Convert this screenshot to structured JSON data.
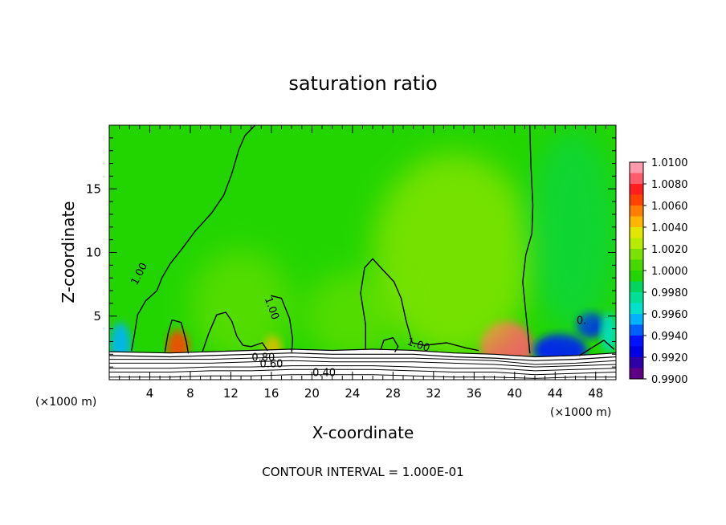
{
  "chart_data": {
    "type": "heatmap",
    "title": "saturation ratio",
    "xlabel": "X-coordinate",
    "ylabel": "Z-coordinate",
    "x_unit_label": "(×1000 m)",
    "x_unit_label_right": "(×1000 m)",
    "footer": "CONTOUR INTERVAL = 1.000E-01",
    "xlim": [
      0,
      50
    ],
    "ylim": [
      0,
      20
    ],
    "x_ticks": [
      4,
      8,
      12,
      16,
      20,
      24,
      28,
      32,
      36,
      40,
      44,
      48
    ],
    "y_ticks": [
      5,
      10,
      15
    ],
    "grid": false,
    "colorbar_labels": [
      "1.0100",
      "1.0080",
      "1.0060",
      "1.0040",
      "1.0020",
      "1.0000",
      "0.9980",
      "0.9960",
      "0.9940",
      "0.9920",
      "0.9900"
    ],
    "colorbar_levels": [
      {
        "min": 1.009,
        "max": 1.01,
        "color": "#ff9aaa"
      },
      {
        "min": 1.008,
        "max": 1.009,
        "color": "#ff5d6c"
      },
      {
        "min": 1.007,
        "max": 1.008,
        "color": "#ff1f1f"
      },
      {
        "min": 1.006,
        "max": 1.007,
        "color": "#ff4300"
      },
      {
        "min": 1.005,
        "max": 1.006,
        "color": "#ff7d00"
      },
      {
        "min": 1.004,
        "max": 1.005,
        "color": "#ffb400"
      },
      {
        "min": 1.003,
        "max": 1.004,
        "color": "#e3e600"
      },
      {
        "min": 1.002,
        "max": 1.003,
        "color": "#b7ec00"
      },
      {
        "min": 1.001,
        "max": 1.002,
        "color": "#7ae200"
      },
      {
        "min": 1.0,
        "max": 1.001,
        "color": "#47d800"
      },
      {
        "min": 0.999,
        "max": 1.0,
        "color": "#23d500"
      },
      {
        "min": 0.998,
        "max": 0.999,
        "color": "#00d55d"
      },
      {
        "min": 0.997,
        "max": 0.998,
        "color": "#00df96"
      },
      {
        "min": 0.996,
        "max": 0.997,
        "color": "#00e0cd"
      },
      {
        "min": 0.995,
        "max": 0.996,
        "color": "#00b3ff"
      },
      {
        "min": 0.994,
        "max": 0.995,
        "color": "#005fff"
      },
      {
        "min": 0.993,
        "max": 0.994,
        "color": "#0012ff"
      },
      {
        "min": 0.992,
        "max": 0.993,
        "color": "#0000e5"
      },
      {
        "min": 0.991,
        "max": 0.992,
        "color": "#2e00a7"
      },
      {
        "min": 0.99,
        "max": 0.991,
        "color": "#5d0084"
      }
    ],
    "contour_labels": [
      {
        "text": "1.00",
        "x": 3.0,
        "y": 8.3,
        "angle": -63
      },
      {
        "text": "1.00",
        "x": 16.0,
        "y": 5.6,
        "angle": 70
      },
      {
        "text": "1.00",
        "x": 30.5,
        "y": 2.7,
        "angle": 18
      },
      {
        "text": "0.80",
        "x": 15.2,
        "y": 1.7,
        "angle": 0
      },
      {
        "text": "0.60",
        "x": 16.0,
        "y": 1.2,
        "angle": 0
      },
      {
        "text": "0.40",
        "x": 21.2,
        "y": 0.5,
        "angle": 0
      },
      {
        "text": "0.",
        "x": 46.6,
        "y": 4.6,
        "angle": 0
      }
    ],
    "contour_lines": [
      {
        "level": "1.00",
        "points": [
          [
            2.2,
            2.3
          ],
          [
            2.5,
            3.6
          ],
          [
            2.8,
            5.1
          ],
          [
            3.6,
            6.2
          ],
          [
            4.7,
            7.0
          ],
          [
            5.2,
            8.0
          ],
          [
            6.0,
            9.1
          ],
          [
            7.1,
            10.2
          ],
          [
            8.5,
            11.7
          ],
          [
            10.1,
            13.1
          ],
          [
            11.3,
            14.5
          ],
          [
            12.1,
            16.2
          ],
          [
            12.8,
            18.1
          ],
          [
            13.4,
            19.2
          ],
          [
            14.4,
            20.0
          ]
        ]
      },
      {
        "level": "1.00",
        "points": [
          [
            16.0,
            6.6
          ],
          [
            17.0,
            6.4
          ],
          [
            17.8,
            4.8
          ],
          [
            18.1,
            3.2
          ],
          [
            18.0,
            2.2
          ]
        ]
      },
      {
        "level": "1.00",
        "points": [
          [
            25.3,
            2.4
          ],
          [
            25.3,
            4.3
          ],
          [
            24.8,
            6.8
          ],
          [
            25.2,
            8.8
          ],
          [
            26.0,
            9.5
          ],
          [
            26.8,
            8.8
          ],
          [
            28.1,
            7.7
          ],
          [
            28.8,
            6.4
          ],
          [
            29.3,
            4.6
          ],
          [
            29.9,
            2.9
          ],
          [
            31.1,
            2.7
          ],
          [
            33.3,
            2.9
          ],
          [
            35.2,
            2.5
          ],
          [
            36.4,
            2.3
          ]
        ]
      },
      {
        "level": "1.00",
        "points": [
          [
            41.5,
            20.0
          ],
          [
            41.6,
            17.0
          ],
          [
            41.8,
            13.7
          ],
          [
            41.7,
            11.5
          ],
          [
            41.1,
            9.8
          ],
          [
            40.8,
            7.7
          ],
          [
            41.1,
            5.3
          ],
          [
            41.3,
            3.8
          ],
          [
            41.5,
            2.1
          ]
        ]
      },
      {
        "level": "1.00",
        "points": [
          [
            5.5,
            2.2
          ],
          [
            5.8,
            3.6
          ],
          [
            6.2,
            4.7
          ],
          [
            7.1,
            4.5
          ],
          [
            7.6,
            3.0
          ],
          [
            7.8,
            2.1
          ]
        ]
      },
      {
        "level": "1.00",
        "points": [
          [
            9.2,
            2.2
          ],
          [
            9.8,
            3.6
          ],
          [
            10.6,
            5.1
          ],
          [
            11.5,
            5.3
          ],
          [
            12.1,
            4.6
          ],
          [
            12.6,
            3.4
          ],
          [
            13.2,
            2.7
          ],
          [
            14.0,
            2.6
          ],
          [
            15.1,
            2.9
          ],
          [
            15.6,
            2.3
          ]
        ]
      },
      {
        "level": "1.00",
        "points": [
          [
            26.8,
            2.4
          ],
          [
            27.1,
            3.1
          ],
          [
            28.0,
            3.3
          ],
          [
            28.5,
            2.6
          ],
          [
            28.2,
            2.2
          ]
        ]
      },
      {
        "level": "1.00",
        "points": [
          [
            46.4,
            1.9
          ],
          [
            47.8,
            2.6
          ],
          [
            48.8,
            3.1
          ],
          [
            49.8,
            2.4
          ]
        ]
      }
    ],
    "surface_layers": [
      {
        "level": 2.35,
        "points": [
          [
            0,
            2.2
          ],
          [
            6,
            2.1
          ],
          [
            10,
            2.2
          ],
          [
            14,
            2.3
          ],
          [
            18,
            2.4
          ],
          [
            22,
            2.3
          ],
          [
            26,
            2.4
          ],
          [
            30,
            2.3
          ],
          [
            34,
            2.1
          ],
          [
            38,
            2.0
          ],
          [
            42,
            1.8
          ],
          [
            46,
            1.9
          ],
          [
            50,
            2.1
          ]
        ]
      },
      {
        "level": 2.05,
        "points": [
          [
            0,
            1.9
          ],
          [
            6,
            1.8
          ],
          [
            10,
            1.9
          ],
          [
            14,
            2.0
          ],
          [
            18,
            2.1
          ],
          [
            22,
            2.0
          ],
          [
            26,
            2.0
          ],
          [
            30,
            2.0
          ],
          [
            34,
            1.8
          ],
          [
            38,
            1.7
          ],
          [
            42,
            1.5
          ],
          [
            46,
            1.6
          ],
          [
            50,
            1.8
          ]
        ]
      },
      {
        "level": 1.75,
        "points": [
          [
            0,
            1.6
          ],
          [
            6,
            1.6
          ],
          [
            10,
            1.6
          ],
          [
            14,
            1.7
          ],
          [
            18,
            1.8
          ],
          [
            22,
            1.7
          ],
          [
            26,
            1.7
          ],
          [
            30,
            1.7
          ],
          [
            34,
            1.6
          ],
          [
            38,
            1.5
          ],
          [
            42,
            1.2
          ],
          [
            46,
            1.3
          ],
          [
            50,
            1.5
          ]
        ]
      },
      {
        "level": 1.45,
        "points": [
          [
            0,
            1.3
          ],
          [
            6,
            1.3
          ],
          [
            10,
            1.3
          ],
          [
            14,
            1.4
          ],
          [
            18,
            1.5
          ],
          [
            22,
            1.4
          ],
          [
            26,
            1.4
          ],
          [
            30,
            1.4
          ],
          [
            34,
            1.3
          ],
          [
            38,
            1.2
          ],
          [
            42,
            1.0
          ],
          [
            46,
            1.1
          ],
          [
            50,
            1.2
          ]
        ]
      },
      {
        "level": 1.1,
        "points": [
          [
            0,
            0.9
          ],
          [
            6,
            0.9
          ],
          [
            10,
            1.0
          ],
          [
            14,
            1.0
          ],
          [
            18,
            1.1
          ],
          [
            22,
            1.1
          ],
          [
            26,
            1.1
          ],
          [
            30,
            1.0
          ],
          [
            34,
            0.9
          ],
          [
            38,
            0.9
          ],
          [
            42,
            0.7
          ],
          [
            46,
            0.8
          ],
          [
            50,
            0.9
          ]
        ]
      },
      {
        "level": 0.75,
        "points": [
          [
            0,
            0.6
          ],
          [
            6,
            0.6
          ],
          [
            10,
            0.7
          ],
          [
            14,
            0.7
          ],
          [
            18,
            0.8
          ],
          [
            22,
            0.8
          ],
          [
            26,
            0.8
          ],
          [
            30,
            0.7
          ],
          [
            34,
            0.6
          ],
          [
            38,
            0.6
          ],
          [
            42,
            0.4
          ],
          [
            46,
            0.5
          ],
          [
            50,
            0.6
          ]
        ]
      },
      {
        "level": 0.35,
        "points": [
          [
            0,
            0.2
          ],
          [
            6,
            0.2
          ],
          [
            10,
            0.3
          ],
          [
            14,
            0.3
          ],
          [
            18,
            0.4
          ],
          [
            22,
            0.4
          ],
          [
            26,
            0.4
          ],
          [
            30,
            0.3
          ],
          [
            34,
            0.2
          ],
          [
            38,
            0.2
          ],
          [
            42,
            0.1
          ],
          [
            46,
            0.2
          ],
          [
            50,
            0.2
          ]
        ]
      }
    ],
    "features": [
      {
        "type": "ellipse",
        "cx": 6.8,
        "cy": 2.6,
        "rx": 1.1,
        "ry": 1.3,
        "value": 1.006
      },
      {
        "type": "ellipse",
        "cx": 16.1,
        "cy": 2.5,
        "rx": 0.9,
        "ry": 1.0,
        "value": 1.004
      },
      {
        "type": "ellipse",
        "cx": 39.2,
        "cy": 2.6,
        "rx": 2.6,
        "ry": 2.0,
        "value": 1.008
      },
      {
        "type": "ellipse",
        "cx": 1.1,
        "cy": 2.7,
        "rx": 1.0,
        "ry": 1.8,
        "value": 0.995
      },
      {
        "type": "ellipse",
        "cx": 44.5,
        "cy": 2.3,
        "rx": 2.6,
        "ry": 1.3,
        "value": 0.993
      },
      {
        "type": "ellipse",
        "cx": 47.5,
        "cy": 4.3,
        "rx": 1.4,
        "ry": 1.0,
        "value": 0.993
      },
      {
        "type": "ellipse",
        "cx": 49.3,
        "cy": 3.7,
        "rx": 0.8,
        "ry": 1.6,
        "value": 0.996
      },
      {
        "type": "ellipse",
        "cx": 34.0,
        "cy": 9.8,
        "rx": 8.0,
        "ry": 8.0,
        "value": 1.0025
      },
      {
        "type": "ellipse",
        "cx": 13.0,
        "cy": 5.8,
        "rx": 5.0,
        "ry": 4.4,
        "value": 1.0015
      },
      {
        "type": "ellipse",
        "cx": 24.0,
        "cy": 5.0,
        "rx": 4.8,
        "ry": 3.5,
        "value": 1.0015
      },
      {
        "type": "ellipse",
        "cx": 45.8,
        "cy": 11.7,
        "rx": 4.3,
        "ry": 8.0,
        "value": 0.9985
      }
    ]
  }
}
